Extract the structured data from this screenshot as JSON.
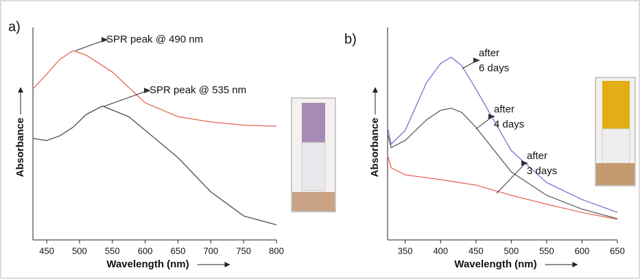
{
  "chart_data": [
    {
      "type": "line",
      "panel_label": "a)",
      "x_label": "Wavelength (nm)",
      "y_label": "Absorbance",
      "xlim": [
        429,
        800
      ],
      "xticks": [
        450,
        500,
        550,
        600,
        650,
        700,
        750,
        800
      ],
      "ylim": [
        0,
        1
      ],
      "annotations": [
        {
          "lines": [
            "SPR peak @ 490 nm"
          ]
        },
        {
          "lines": [
            "SPR peak @ 535 nm"
          ]
        }
      ],
      "series": [
        {
          "color": "#e8705f",
          "x": [
            429,
            450,
            470,
            490,
            510,
            550,
            600,
            650,
            700,
            750,
            800
          ],
          "values": [
            0.71,
            0.78,
            0.85,
            0.89,
            0.87,
            0.79,
            0.645,
            0.58,
            0.555,
            0.54,
            0.535
          ]
        },
        {
          "color": "#555555",
          "x": [
            429,
            450,
            470,
            490,
            510,
            535,
            575,
            600,
            650,
            700,
            750,
            800
          ],
          "values": [
            0.477,
            0.468,
            0.49,
            0.53,
            0.59,
            0.63,
            0.58,
            0.516,
            0.387,
            0.226,
            0.113,
            0.071
          ]
        }
      ]
    },
    {
      "type": "line",
      "panel_label": "b)",
      "x_label": "Wavelength (nm)",
      "y_label": "Absorbance",
      "xlim": [
        325,
        650
      ],
      "xticks": [
        350,
        400,
        450,
        500,
        550,
        600,
        650
      ],
      "ylim": [
        0,
        1
      ],
      "annotations": [
        {
          "lines": [
            "after",
            "6 days"
          ]
        },
        {
          "lines": [
            "after",
            "4 days"
          ]
        },
        {
          "lines": [
            "after",
            "3 days"
          ]
        }
      ],
      "series": [
        {
          "color": "#7b7bd6",
          "x": [
            325,
            330,
            350,
            380,
            400,
            415,
            430,
            450,
            500,
            550,
            600,
            650
          ],
          "values": [
            0.53,
            0.45,
            0.516,
            0.74,
            0.83,
            0.86,
            0.82,
            0.71,
            0.42,
            0.27,
            0.19,
            0.13
          ]
        },
        {
          "color": "#666666",
          "x": [
            325,
            330,
            350,
            380,
            400,
            415,
            430,
            450,
            500,
            550,
            600,
            650
          ],
          "values": [
            0.5,
            0.435,
            0.468,
            0.565,
            0.61,
            0.62,
            0.6,
            0.53,
            0.32,
            0.21,
            0.145,
            0.1
          ]
        },
        {
          "color": "#e8705f",
          "x": [
            325,
            330,
            350,
            400,
            450,
            500,
            550,
            600,
            650
          ],
          "values": [
            0.4,
            0.34,
            0.306,
            0.284,
            0.258,
            0.21,
            0.168,
            0.129,
            0.097
          ]
        }
      ]
    }
  ]
}
